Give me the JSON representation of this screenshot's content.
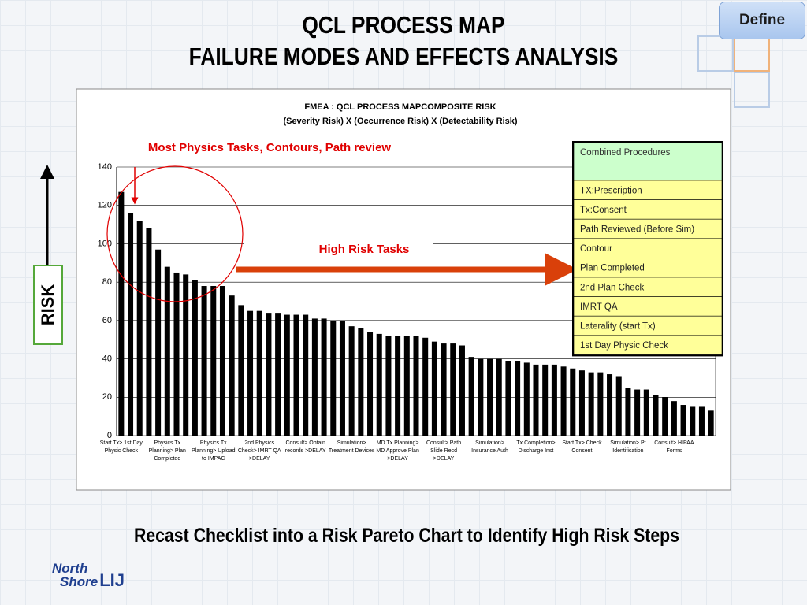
{
  "header": {
    "title_line1": "QCL PROCESS MAP",
    "title_line2": "FAILURE MODES AND EFFECTS ANALYSIS",
    "button": "Define"
  },
  "axis_note": "RISK",
  "chart_data": {
    "type": "bar",
    "title": "FMEA : QCL PROCESS MAPCOMPOSITE RISK",
    "subtitle": "(Severity Risk) X (Occurrence Risk) X (Detectability Risk)",
    "annotations": [
      "Most Physics Tasks, Contours, Path review",
      "High Risk Tasks"
    ],
    "categories": [
      "Start Tx> 1st Day Physic Check",
      null,
      null,
      null,
      null,
      "Physics Tx Planning> Plan Completed",
      null,
      null,
      null,
      null,
      "Physics Tx Planning> Upload to IMPAC",
      null,
      null,
      null,
      null,
      "2nd Physics Check> IMRT QA >DELAY",
      null,
      null,
      null,
      null,
      "Consult> Obtain records >DELAY",
      null,
      null,
      null,
      null,
      "Simulation> Treatment Devices",
      null,
      null,
      null,
      null,
      "MD Tx Planning> MD Approve Plan >DELAY",
      null,
      null,
      null,
      null,
      "Consult> Path Slide Recd >DELAY",
      null,
      null,
      null,
      null,
      "Simulation> Insurance Auth",
      null,
      null,
      null,
      null,
      "Tx Completion> Discharge Inst",
      null,
      null,
      null,
      null,
      "Start Tx> Check Consent",
      null,
      null,
      null,
      null,
      "Simulation> Pt Identification",
      null,
      null,
      null,
      null,
      "Consult> HIPAA Forms",
      null,
      null,
      null,
      null
    ],
    "values": [
      127,
      116,
      112,
      108,
      97,
      88,
      85,
      84,
      81,
      78,
      78,
      78,
      73,
      68,
      65,
      65,
      64,
      64,
      63,
      63,
      63,
      61,
      61,
      60,
      60,
      57,
      56,
      54,
      53,
      52,
      52,
      52,
      52,
      51,
      49,
      48,
      48,
      47,
      41,
      40,
      40,
      40,
      39,
      39,
      38,
      37,
      37,
      37,
      36,
      35,
      34,
      33,
      33,
      32,
      31,
      25,
      24,
      24,
      21,
      20,
      18,
      16,
      15,
      15,
      13
    ],
    "color": "#000000",
    "ylim": [
      0,
      140
    ],
    "yticks": [
      0,
      20,
      40,
      60,
      80,
      100,
      120,
      140
    ],
    "grid": true
  },
  "risk_table": {
    "title": "Combined Procedures",
    "rows": [
      "TX:Prescription",
      "Tx:Consent",
      "Path Reviewed (Before Sim)",
      "Contour",
      "Plan Completed",
      "2nd Plan Check",
      "IMRT QA",
      "Laterality (start Tx)",
      "1st Day Physic Check"
    ]
  },
  "caption": "Recast Checklist into a Risk Pareto Chart to Identify High Risk Steps",
  "logo": {
    "line1": "North",
    "line2": "Shore",
    "mark": "LIJ"
  }
}
